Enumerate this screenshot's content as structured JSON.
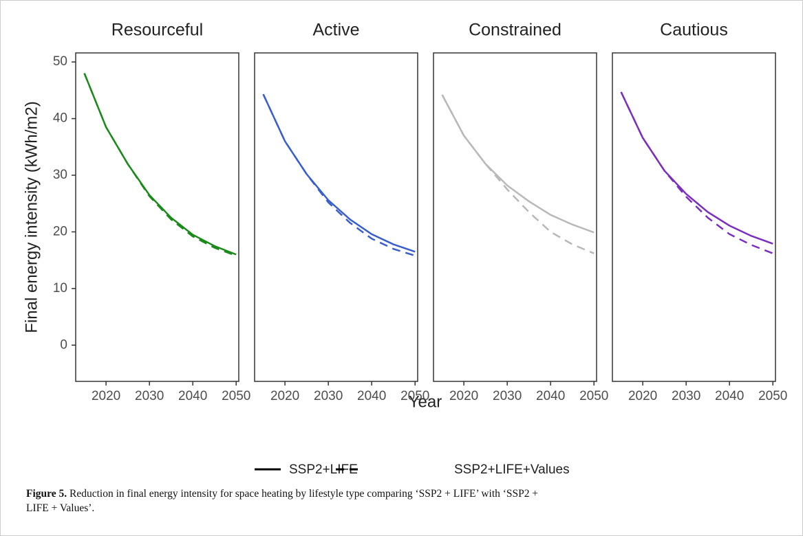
{
  "chart_data": [
    {
      "type": "line",
      "title": "Resourceful",
      "x": [
        2015,
        2020,
        2025,
        2030,
        2035,
        2040,
        2045,
        2050
      ],
      "xlim": [
        2013,
        2050.6
      ],
      "xticks": [
        2020,
        2030,
        2040,
        2050
      ],
      "ylim": [
        -6.4,
        51.6
      ],
      "yticks": [
        0,
        10,
        20,
        30,
        40,
        50
      ],
      "series": [
        {
          "name": "SSP2+LIFE",
          "color": "#1a8a1a",
          "dash": "solid",
          "values": [
            48,
            38.5,
            32,
            26.5,
            22.5,
            19.5,
            17.5,
            16
          ]
        },
        {
          "name": "SSP2+LIFE+Values",
          "color": "#1a8a1a",
          "dash": "dashed",
          "values": [
            48,
            38.5,
            32,
            26.3,
            22.2,
            19.2,
            17.2,
            15.8
          ]
        }
      ]
    },
    {
      "type": "line",
      "title": "Active",
      "x": [
        2015,
        2020,
        2025,
        2030,
        2035,
        2040,
        2045,
        2050
      ],
      "xlim": [
        2013,
        2050.6
      ],
      "xticks": [
        2020,
        2030,
        2040,
        2050
      ],
      "series": [
        {
          "name": "SSP2+LIFE",
          "color": "#3a5fcd",
          "dash": "solid",
          "values": [
            44.3,
            36,
            30.2,
            25.6,
            22.2,
            19.6,
            17.8,
            16.5
          ]
        },
        {
          "name": "SSP2+LIFE+Values",
          "color": "#3a5fcd",
          "dash": "dashed",
          "values": [
            44.3,
            36,
            30.2,
            25.2,
            21.6,
            18.8,
            17,
            15.8
          ]
        }
      ]
    },
    {
      "type": "line",
      "title": "Constrained",
      "x": [
        2015,
        2020,
        2025,
        2030,
        2035,
        2040,
        2045,
        2050
      ],
      "xlim": [
        2013,
        2050.6
      ],
      "xticks": [
        2020,
        2030,
        2040,
        2050
      ],
      "series": [
        {
          "name": "SSP2+LIFE",
          "color": "#b8b8b8",
          "dash": "solid",
          "values": [
            44.2,
            37,
            32,
            28.2,
            25.4,
            23,
            21.3,
            19.9
          ]
        },
        {
          "name": "SSP2+LIFE+Values",
          "color": "#b8b8b8",
          "dash": "dashed",
          "values": [
            44.2,
            37,
            32,
            27.5,
            23.5,
            20,
            17.8,
            16.2
          ]
        }
      ]
    },
    {
      "type": "line",
      "title": "Cautious",
      "x": [
        2015,
        2020,
        2025,
        2030,
        2035,
        2040,
        2045,
        2050
      ],
      "xlim": [
        2013,
        2050.6
      ],
      "xticks": [
        2020,
        2030,
        2040,
        2050
      ],
      "series": [
        {
          "name": "SSP2+LIFE",
          "color": "#7b2fbe",
          "dash": "solid",
          "values": [
            44.7,
            36.6,
            30.8,
            26.7,
            23.5,
            21.1,
            19.3,
            17.9
          ]
        },
        {
          "name": "SSP2+LIFE+Values",
          "color": "#7b2fbe",
          "dash": "dashed",
          "values": [
            44.7,
            36.6,
            30.8,
            26.2,
            22.5,
            19.6,
            17.7,
            16.2
          ]
        }
      ]
    }
  ],
  "ylabel": "Final energy intensity (kWh/m2)",
  "xlabel": "Year",
  "figure": {
    "label": "Figure 5.",
    "text": "Reduction in final energy intensity for space heating by lifestyle type comparing ‘SSP2 + LIFE’ with ‘SSP2 + LIFE + Values’."
  }
}
